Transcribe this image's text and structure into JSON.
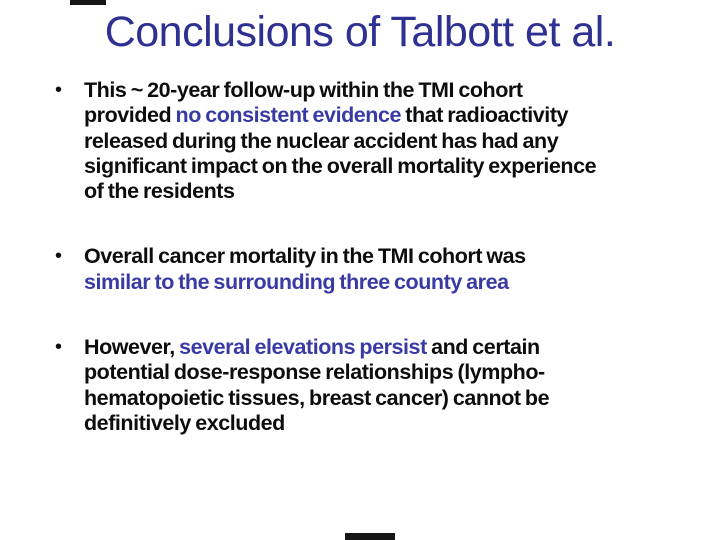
{
  "slide": {
    "title": "Conclusions of Talbott et al.",
    "colors": {
      "background": "#FFFFFF",
      "title": "#2E3192",
      "body": "#0D0D0D",
      "accent": "#3A3AA5",
      "edge_artifact": "#161616"
    },
    "bullets": [
      {
        "marker": "•",
        "lines": [
          [
            {
              "text": "This ~ 20-year follow-up within the TMI cohort",
              "style": "body"
            }
          ],
          [
            {
              "text": "provided ",
              "style": "body"
            },
            {
              "text": "no consistent evidence",
              "style": "accent"
            },
            {
              "text": " that radioactivity",
              "style": "body"
            }
          ],
          [
            {
              "text": "released during the nuclear accident has had any",
              "style": "body"
            }
          ],
          [
            {
              "text": "significant impact on the overall mortality experience",
              "style": "body"
            }
          ],
          [
            {
              "text": "of the residents",
              "style": "body"
            }
          ]
        ]
      },
      {
        "marker": "•",
        "lines": [
          [
            {
              "text": "Overall cancer mortality in the TMI cohort was",
              "style": "body"
            }
          ],
          [
            {
              "text": "similar to the surrounding three county area",
              "style": "accent"
            }
          ]
        ]
      },
      {
        "marker": "•",
        "lines": [
          [
            {
              "text": "However, ",
              "style": "body"
            },
            {
              "text": "several elevations persist",
              "style": "accent"
            },
            {
              "text": " and certain",
              "style": "body"
            }
          ],
          [
            {
              "text": "potential dose-response relationships (lympho-",
              "style": "body"
            }
          ],
          [
            {
              "text": "hematopoietic tissues, breast cancer) cannot be",
              "style": "body"
            }
          ],
          [
            {
              "text": "definitively excluded",
              "style": "body"
            }
          ]
        ]
      }
    ]
  }
}
